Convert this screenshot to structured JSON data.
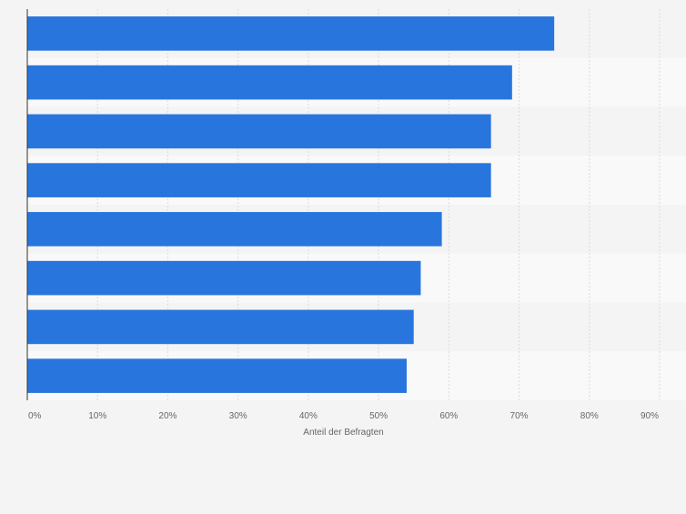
{
  "chart_data": {
    "type": "bar",
    "orientation": "horizontal",
    "title": "",
    "xlabel": "Anteil der Befragten",
    "ylabel": "",
    "xlim": [
      0,
      90
    ],
    "ticks": [
      0,
      10,
      20,
      30,
      40,
      50,
      60,
      70,
      80,
      90
    ],
    "tick_labels": [
      "0%",
      "10%",
      "20%",
      "30%",
      "40%",
      "50%",
      "60%",
      "70%",
      "80%",
      "90%"
    ],
    "categories": [
      "",
      "",
      "",
      "",
      "",
      "",
      "",
      ""
    ],
    "values": [
      75,
      69,
      66,
      66,
      59,
      56,
      55,
      54
    ],
    "grid": true,
    "colors": {
      "bar": "#2876dd",
      "background": "#f4f4f4",
      "band_alt": "#f9f9f9",
      "grid": "#dcdcdc",
      "axis": "#333333",
      "tick_text": "#666666"
    }
  }
}
